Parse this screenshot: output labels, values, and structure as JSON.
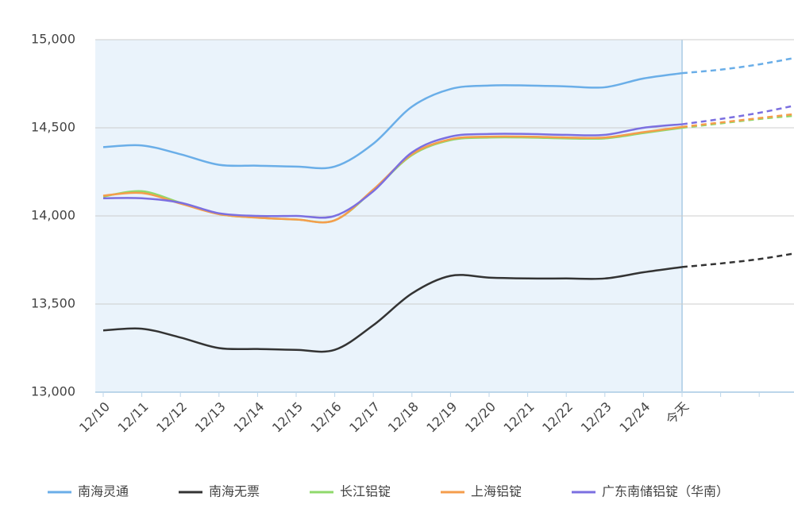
{
  "chart_data": {
    "type": "line",
    "categories": [
      "12/10",
      "12/11",
      "12/12",
      "12/13",
      "12/14",
      "12/15",
      "12/16",
      "12/17",
      "12/18",
      "12/19",
      "12/20",
      "12/21",
      "12/22",
      "12/23",
      "12/24",
      "今天",
      null,
      null,
      null
    ],
    "forecast_start": "今天",
    "series": [
      {
        "name": "南海灵通",
        "color": "#6aaee8",
        "values": [
          14390,
          14400,
          14350,
          14290,
          14285,
          14280,
          14280,
          14410,
          14620,
          14720,
          14740,
          14740,
          14735,
          14730,
          14780,
          14810,
          14830,
          14860,
          14900
        ]
      },
      {
        "name": "南海无票",
        "color": "#333333",
        "values": [
          13350,
          13360,
          13310,
          13250,
          13245,
          13240,
          13240,
          13380,
          13560,
          13660,
          13650,
          13645,
          13645,
          13645,
          13680,
          13710,
          13730,
          13755,
          13790
        ]
      },
      {
        "name": "长江铝锭",
        "color": "#8fd96b",
        "values": [
          14110,
          14140,
          14075,
          14010,
          13990,
          13980,
          13975,
          14145,
          14345,
          14430,
          14445,
          14445,
          14440,
          14440,
          14470,
          14500,
          14525,
          14550,
          14570
        ]
      },
      {
        "name": "上海铝锭",
        "color": "#f59d4c",
        "values": [
          14115,
          14130,
          14070,
          14010,
          13990,
          13980,
          13975,
          14150,
          14350,
          14435,
          14450,
          14450,
          14445,
          14445,
          14475,
          14505,
          14530,
          14555,
          14580
        ]
      },
      {
        "name": "广东南储铝锭（华南）",
        "color": "#7b6fe0",
        "values": [
          14100,
          14100,
          14075,
          14015,
          14000,
          14000,
          14000,
          14140,
          14360,
          14450,
          14465,
          14465,
          14460,
          14460,
          14500,
          14520,
          14550,
          14585,
          14630
        ]
      }
    ],
    "ylim": [
      13000,
      15000
    ],
    "yticks": [
      {
        "value": 13000,
        "label": "13,000"
      },
      {
        "value": 13500,
        "label": "13,500"
      },
      {
        "value": 14000,
        "label": "14,000"
      },
      {
        "value": 14500,
        "label": "14,500"
      },
      {
        "value": 15000,
        "label": "15,000"
      }
    ],
    "grid": true
  }
}
